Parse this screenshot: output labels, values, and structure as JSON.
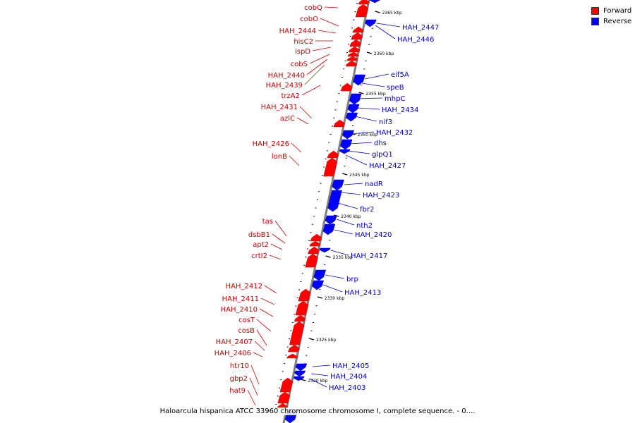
{
  "legend": {
    "forward_label": "Forward",
    "reverse_label": "Reverse",
    "forward_color": "#ff0000",
    "reverse_color": "#0000ff"
  },
  "caption": "Haloarcula hispanica ATCC 33960 chromosome chromosome I, complete sequence. - 0....",
  "colors": {
    "forward_label": "#cc0000",
    "reverse_label": "#0000cc",
    "backbone": "#808080"
  },
  "scale": {
    "unit": "kbp",
    "ticks": [
      2320,
      2325,
      2330,
      2335,
      2340,
      2345,
      2350,
      2355,
      2360,
      2365
    ]
  },
  "forward_genes": [
    "cobQ",
    "cobO",
    "HAH_2444",
    "hisC2",
    "ispD",
    "cobS",
    "HAH_2440",
    "HAH_2439",
    "trzA2",
    "HAH_2431",
    "azlC",
    "HAH_2426",
    "lonB",
    "tas",
    "dsbB1",
    "apt2",
    "crtI2",
    "HAH_2412",
    "HAH_2411",
    "HAH_2410",
    "cosT",
    "cosB",
    "HAH_2407",
    "HAH_2406",
    "htr10",
    "gbp2",
    "hat9"
  ],
  "reverse_genes": [
    "HAH_2447",
    "HAH_2446",
    "eif5A",
    "speB",
    "mhpC",
    "HAH_2434",
    "nif3",
    "HAH_2432",
    "dhs",
    "glpQ1",
    "HAH_2427",
    "nadR",
    "HAH_2423",
    "fbr2",
    "nth2",
    "HAH_2420",
    "HAH_2417",
    "brp",
    "HAH_2413",
    "HAH_2405",
    "HAH_2404",
    "HAH_2403"
  ]
}
